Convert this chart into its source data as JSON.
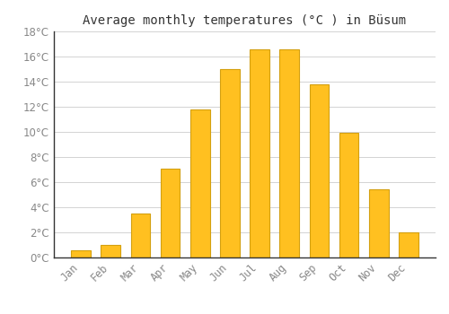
{
  "title": "Average monthly temperatures (°C ) in Büsum",
  "months": [
    "Jan",
    "Feb",
    "Mar",
    "Apr",
    "May",
    "Jun",
    "Jul",
    "Aug",
    "Sep",
    "Oct",
    "Nov",
    "Dec"
  ],
  "values": [
    0.6,
    1.0,
    3.5,
    7.1,
    11.8,
    15.0,
    16.6,
    16.6,
    13.8,
    9.9,
    5.4,
    2.0
  ],
  "bar_color": "#FFC020",
  "bar_edge_color": "#D4A010",
  "ylim": [
    0,
    18
  ],
  "yticks": [
    0,
    2,
    4,
    6,
    8,
    10,
    12,
    14,
    16,
    18
  ],
  "background_color": "#ffffff",
  "grid_color": "#cccccc",
  "title_fontsize": 10,
  "tick_fontsize": 8.5,
  "tick_color": "#888888",
  "font_family": "monospace",
  "bar_width": 0.65
}
